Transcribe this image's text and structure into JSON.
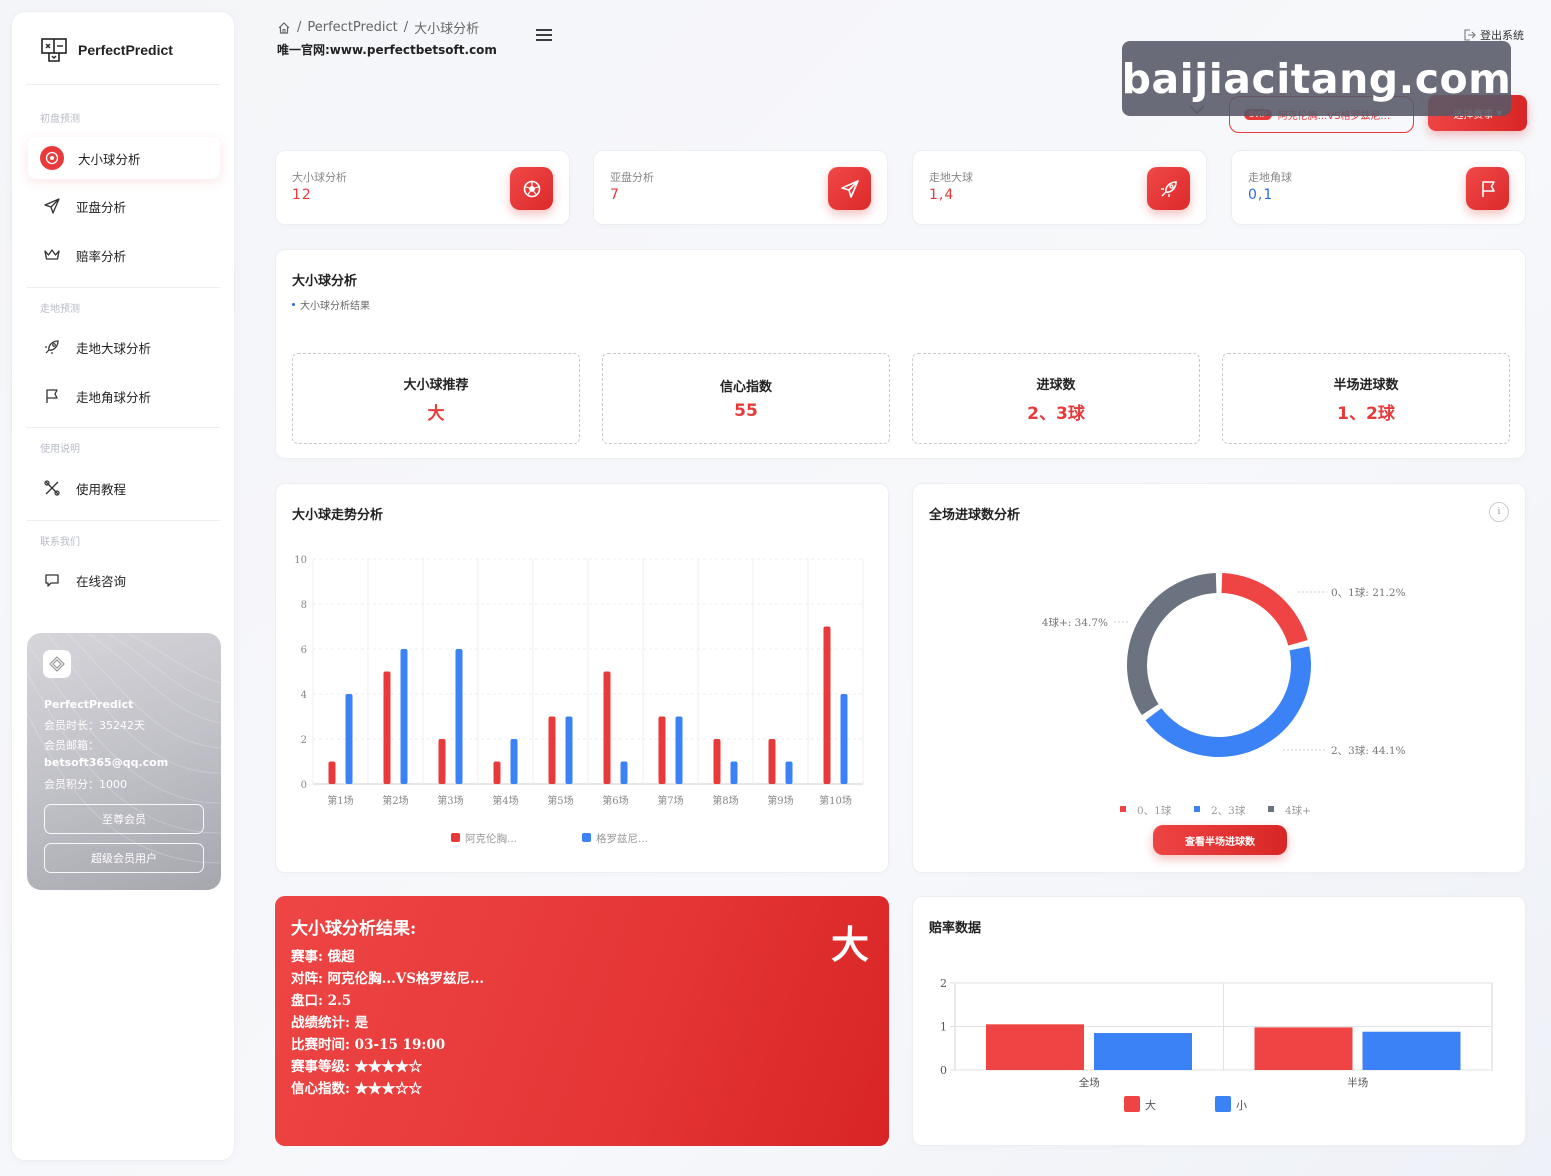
{
  "brand": {
    "name": "PerfectPredict"
  },
  "sidebar": {
    "sections": [
      {
        "title": "初盘预测",
        "items": [
          {
            "label": "大小球分析",
            "icon": "soccer-ball-icon",
            "active": true
          },
          {
            "label": "亚盘分析",
            "icon": "send-icon"
          },
          {
            "label": "赔率分析",
            "icon": "crown-icon"
          }
        ]
      },
      {
        "title": "走地预测",
        "items": [
          {
            "label": "走地大球分析",
            "icon": "rocket-icon"
          },
          {
            "label": "走地角球分析",
            "icon": "flag-icon"
          }
        ]
      },
      {
        "title": "使用说明",
        "items": [
          {
            "label": "使用教程",
            "icon": "tools-icon"
          }
        ]
      },
      {
        "title": "联系我们",
        "items": [
          {
            "label": "在线咨询",
            "icon": "chat-icon"
          }
        ]
      }
    ],
    "member": {
      "name": "PerfectPredict",
      "duration": "会员时长：35242天",
      "email_label": "会员邮箱：",
      "email": "betsoft365@qq.com",
      "points": "会员积分：1000",
      "btn_vip": "至尊会员",
      "btn_super": "超级会员用户"
    }
  },
  "header": {
    "breadcrumb": [
      "PerfectPredict",
      "大小球分析"
    ],
    "subsite": "唯一官网:www.perfectbetsoft.com",
    "logout": "登出系统",
    "watermark": "baijiacitang.com",
    "svip": "SVIP",
    "match": "阿克伦胸...VS格罗兹尼...",
    "select_match": "选择赛事"
  },
  "stats": [
    {
      "label": "大小球分析",
      "value": "12",
      "icon": "soccer-ball-icon",
      "color": "red"
    },
    {
      "label": "亚盘分析",
      "value": "7",
      "icon": "send-icon",
      "color": "red"
    },
    {
      "label": "走地大球",
      "value": "1,4",
      "icon": "rocket-icon",
      "color": "red"
    },
    {
      "label": "走地角球",
      "value": "0,1",
      "icon": "flag-icon",
      "color": "blue"
    }
  ],
  "analysis": {
    "title": "大小球分析",
    "subtitle": "大小球分析结果",
    "boxes": [
      {
        "label": "大小球推荐",
        "value": "大"
      },
      {
        "label": "信心指数",
        "value": "55"
      },
      {
        "label": "进球数",
        "value": "2、3球"
      },
      {
        "label": "半场进球数",
        "value": "1、2球"
      }
    ]
  },
  "trend": {
    "title": "大小球走势分析",
    "legend": [
      "阿克伦胸...",
      "格罗兹尼..."
    ]
  },
  "goals": {
    "title": "全场进球数分析",
    "info": "i",
    "labels": [
      "0、1球: 21.2%",
      "2、3球: 44.1%",
      "4球+: 34.7%"
    ],
    "legend": [
      "0、1球",
      "2、3球",
      "4球+"
    ],
    "button": "查看半场进球数"
  },
  "result": {
    "title": "大小球分析结果:",
    "big": "大",
    "lines": [
      "赛事: 俄超",
      "对阵: 阿克伦胸...VS格罗兹尼...",
      "盘口: 2.5",
      "战绩统计: 是",
      "比赛时间: 03-15 19:00",
      "赛事等级: ★★★★☆",
      "信心指数: ★★★☆☆"
    ]
  },
  "odds": {
    "title": "赔率数据",
    "legend": [
      "大",
      "小"
    ]
  },
  "colors": {
    "accent": "#e83a3a",
    "blue": "#3b82f6",
    "gray": "#6b7280"
  },
  "chart_data": [
    {
      "type": "bar",
      "title": "大小球走势分析",
      "categories": [
        "第1场",
        "第2场",
        "第3场",
        "第4场",
        "第5场",
        "第6场",
        "第7场",
        "第8场",
        "第9场",
        "第10场"
      ],
      "series": [
        {
          "name": "阿克伦胸...",
          "color": "#e83a3a",
          "values": [
            1,
            5,
            2,
            1,
            3,
            5,
            3,
            2,
            2,
            7
          ]
        },
        {
          "name": "格罗兹尼...",
          "color": "#3b82f6",
          "values": [
            4,
            6,
            6,
            2,
            3,
            1,
            3,
            1,
            1,
            4
          ]
        }
      ],
      "ylim": [
        0,
        10
      ],
      "yticks": [
        0,
        2,
        4,
        6,
        8,
        10
      ],
      "grid": true,
      "legend": "bottom"
    },
    {
      "type": "pie",
      "title": "全场进球数分析",
      "donut": true,
      "slices": [
        {
          "name": "0、1球",
          "value": 21.2,
          "color": "#ef4444"
        },
        {
          "name": "2、3球",
          "value": 44.1,
          "color": "#3b82f6"
        },
        {
          "name": "4球+",
          "value": 34.7,
          "color": "#6b7280"
        }
      ],
      "legend": "bottom"
    },
    {
      "type": "bar",
      "title": "赔率数据",
      "categories": [
        "全场",
        "半场"
      ],
      "series": [
        {
          "name": "大",
          "color": "#ef4444",
          "values": [
            1.05,
            0.98
          ]
        },
        {
          "name": "小",
          "color": "#3b82f6",
          "values": [
            0.85,
            0.88
          ]
        }
      ],
      "ylim": [
        0,
        2
      ],
      "yticks": [
        0,
        1,
        2
      ],
      "grid": true,
      "legend": "bottom"
    }
  ]
}
